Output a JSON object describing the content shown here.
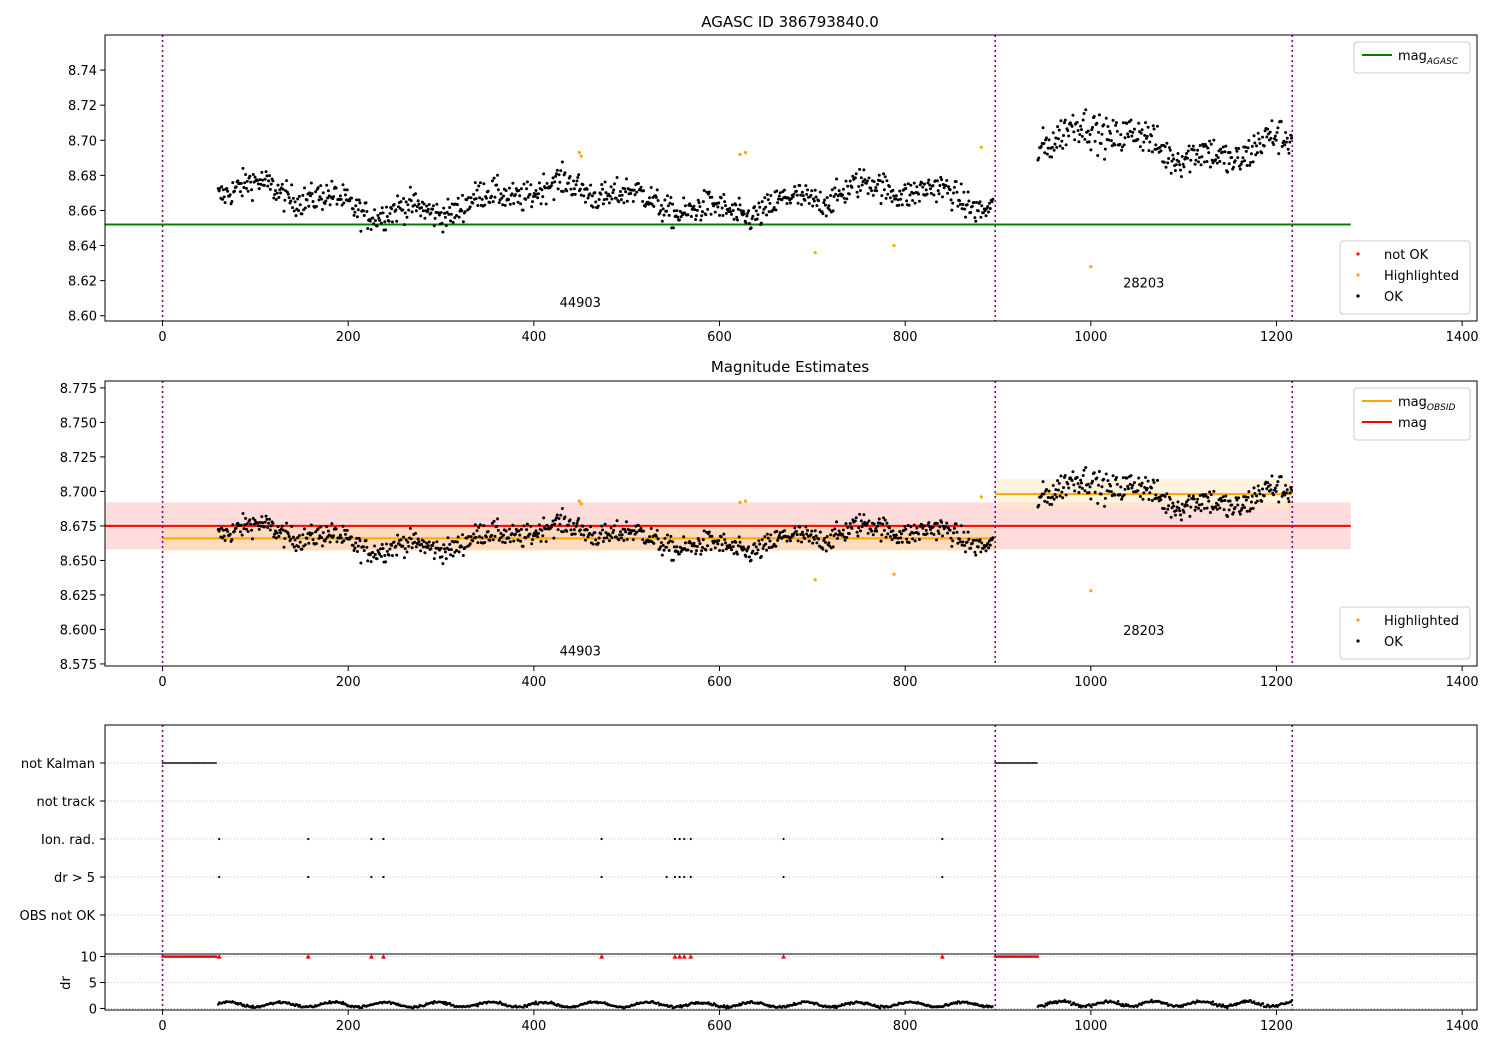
{
  "figure": {
    "x_ticks": [
      0,
      200,
      400,
      600,
      800,
      1000,
      1200,
      1400
    ],
    "xlim": [
      -62,
      1416
    ],
    "obs_boundaries": [
      0,
      897,
      1217
    ]
  },
  "chart_data": [
    {
      "id": "agasc",
      "type": "scatter",
      "title": "AGASC ID 386793840.0",
      "ylim": [
        8.597,
        8.76
      ],
      "y_ticks": [
        8.6,
        8.62,
        8.64,
        8.66,
        8.68,
        8.7,
        8.72,
        8.74
      ],
      "y_decimals": 2,
      "grid": false,
      "hlines": [
        {
          "name": "mag_AGASC",
          "y": 8.652,
          "x0": -62,
          "x1": 1280,
          "color": "#008000"
        }
      ],
      "obsid_labels": [
        {
          "text": "44903",
          "x": 450,
          "y": 8.605
        },
        {
          "text": "28203",
          "x": 1057,
          "y": 8.616
        }
      ],
      "series": [
        {
          "name": "OK",
          "color": "#000000"
        },
        {
          "name": "Highlighted",
          "color": "#FFA500",
          "points": [
            [
              449,
              8.693
            ],
            [
              451,
              8.691
            ],
            [
              622,
              8.692
            ],
            [
              628,
              8.693
            ],
            [
              703,
              8.636
            ],
            [
              788,
              8.64
            ],
            [
              882,
              8.696
            ],
            [
              1000,
              8.628
            ]
          ]
        },
        {
          "name": "not OK",
          "color": "#FF0000",
          "points": []
        }
      ],
      "legends": [
        {
          "placement": "upper-right",
          "entries": [
            {
              "name": "mag",
              "sub": "AGASC",
              "color": "#008000",
              "kind": "line"
            }
          ]
        },
        {
          "placement": "lower-right",
          "entries": [
            {
              "name": "not OK",
              "color": "#FF0000",
              "kind": "dot"
            },
            {
              "name": "Highlighted",
              "color": "#FFA500",
              "kind": "dot"
            },
            {
              "name": "OK",
              "color": "#000000",
              "kind": "dot"
            }
          ]
        }
      ]
    },
    {
      "id": "estimates",
      "type": "scatter",
      "title": "Magnitude Estimates",
      "ylim": [
        8.5735,
        8.78
      ],
      "y_ticks": [
        8.575,
        8.6,
        8.625,
        8.65,
        8.675,
        8.7,
        8.725,
        8.75,
        8.775
      ],
      "y_decimals": 3,
      "grid": false,
      "hlines": [
        {
          "name": "mag",
          "y": 8.675,
          "x0": -62,
          "x1": 1280,
          "color": "#FF0000",
          "band": [
            8.658,
            8.692
          ],
          "band_color": "#FFC0C0"
        },
        {
          "name": "mag_OBSID 44903",
          "y": 8.666,
          "x0": 0,
          "x1": 897,
          "color": "#FFA500",
          "band": [
            8.657,
            8.675
          ],
          "band_color": "#FFD9A8"
        },
        {
          "name": "mag_OBSID 28203",
          "y": 8.698,
          "x0": 897,
          "x1": 1217,
          "color": "#FFA500",
          "band": [
            8.687,
            8.709
          ],
          "band_color": "#FFE8C4"
        }
      ],
      "obsid_labels": [
        {
          "text": "44903",
          "x": 450,
          "y": 8.581
        },
        {
          "text": "28203",
          "x": 1057,
          "y": 8.596
        }
      ],
      "series": [
        {
          "name": "OK",
          "color": "#000000"
        },
        {
          "name": "Highlighted",
          "color": "#FFA500",
          "points": [
            [
              449,
              8.693
            ],
            [
              451,
              8.691
            ],
            [
              622,
              8.692
            ],
            [
              628,
              8.693
            ],
            [
              703,
              8.636
            ],
            [
              788,
              8.64
            ],
            [
              882,
              8.696
            ],
            [
              1000,
              8.628
            ]
          ]
        }
      ],
      "legends": [
        {
          "placement": "upper-right",
          "entries": [
            {
              "name": "mag",
              "sub": "OBSID",
              "color": "#FFA500",
              "kind": "line"
            },
            {
              "name": "mag",
              "sub": "",
              "color": "#FF0000",
              "kind": "line"
            }
          ]
        },
        {
          "placement": "lower-right",
          "entries": [
            {
              "name": "Highlighted",
              "color": "#FFA500",
              "kind": "dot"
            },
            {
              "name": "OK",
              "color": "#000000",
              "kind": "dot"
            }
          ]
        }
      ]
    },
    {
      "id": "flags",
      "type": "scatter",
      "categories": [
        "not Kalman",
        "not track",
        "Ion. rad.",
        "dr > 5",
        "OBS not OK"
      ],
      "grid": true,
      "series": [
        {
          "name": "not Kalman",
          "color": "#000000",
          "ranges": [
            [
              0,
              58
            ],
            [
              897,
              943
            ]
          ]
        },
        {
          "name": "not track",
          "color": "#000000",
          "x": []
        },
        {
          "name": "Ion. rad.",
          "color": "#000000",
          "x": [
            61,
            157,
            225,
            238,
            473,
            552,
            557,
            562,
            569,
            669,
            840
          ]
        },
        {
          "name": "dr > 5",
          "color": "#000000",
          "x": [
            61,
            157,
            225,
            238,
            473,
            543,
            552,
            557,
            562,
            569,
            669,
            840
          ]
        },
        {
          "name": "OBS not OK",
          "color": "#000000",
          "x": []
        }
      ]
    },
    {
      "id": "dr",
      "type": "scatter",
      "ylabel": "dr",
      "ylim": [
        -0.3,
        10.5
      ],
      "y_ticks": [
        0,
        5,
        10
      ],
      "grid": true,
      "flag_level": 10,
      "flag_marker_x": [
        61,
        157,
        225,
        238,
        473,
        552,
        557,
        562,
        569,
        669,
        840
      ],
      "flag_ranges": [
        [
          0,
          58
        ],
        [
          897,
          943
        ]
      ],
      "series": [
        {
          "name": "dr",
          "color": "#000000"
        }
      ]
    }
  ]
}
